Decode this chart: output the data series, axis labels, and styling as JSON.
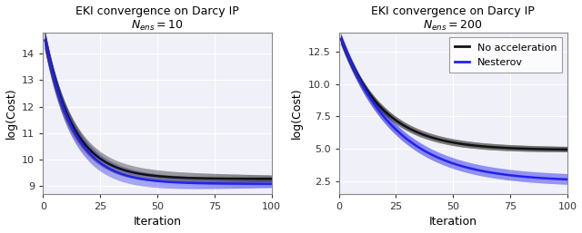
{
  "title": "EKI convergence on Darcy IP",
  "subtitle1": "$N_{ens} = 10$",
  "subtitle2": "$N_{ens} = 200$",
  "xlabel": "Iteration",
  "ylabel": "log(Cost)",
  "xlim": [
    0,
    100
  ],
  "xticks": [
    0,
    25,
    50,
    75,
    100
  ],
  "black_color": "#111111",
  "blue_color": "#2222ee",
  "legend_labels": [
    "No acceleration",
    "Nesterov"
  ],
  "fig_width": 6.4,
  "fig_height": 2.57,
  "dpi": 100,
  "plot1": {
    "ylim": [
      8.7,
      14.8
    ],
    "yticks": [
      9,
      10,
      11,
      12,
      13,
      14
    ],
    "black_mean_start": 14.5,
    "black_mean_end": 9.27,
    "black_band_width_start": 0.3,
    "black_band_width_end": 0.12,
    "blue_mean_start": 14.5,
    "blue_mean_end": 9.08,
    "blue_band_width_start": 0.35,
    "blue_band_width_end": 0.15,
    "decay_black": 0.08,
    "decay_blue": 0.08
  },
  "plot2": {
    "ylim": [
      1.5,
      14.0
    ],
    "yticks": [
      2.5,
      5.0,
      7.5,
      10.0,
      12.5
    ],
    "black_mean_start": 13.5,
    "black_mean_end": 4.9,
    "black_band_width_start": 0.3,
    "black_band_width_end": 0.2,
    "blue_mean_start": 13.5,
    "blue_mean_end": 2.45,
    "blue_band_width_start": 0.4,
    "blue_band_width_end": 0.4,
    "decay_black": 0.055,
    "decay_blue": 0.042
  }
}
